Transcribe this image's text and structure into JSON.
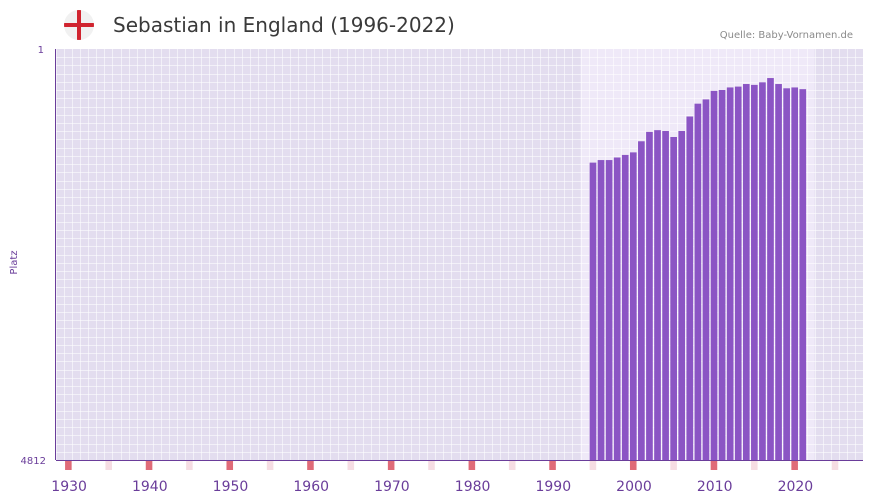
{
  "header": {
    "title": "Sebastian in England (1996-2022)",
    "source": "Quelle: Baby-Vornamen.de",
    "flag_icon": "england-flag-icon"
  },
  "chart_data": {
    "type": "bar",
    "title": "Sebastian in England (1996-2022)",
    "ylabel": "Platz",
    "xlabel": "",
    "y_inverted": true,
    "ylim": [
      1,
      4812
    ],
    "y_ticks": [
      "1",
      "4812"
    ],
    "xlim": [
      1929,
      2029
    ],
    "x_ticks": [
      "1930",
      "1940",
      "1950",
      "1960",
      "1970",
      "1980",
      "1990",
      "2000",
      "2010",
      "2020"
    ],
    "bar_color": "#8b55c4",
    "grid": true,
    "x": [
      1996,
      1997,
      1998,
      1999,
      2000,
      2001,
      2002,
      2003,
      2004,
      2005,
      2006,
      2007,
      2008,
      2009,
      2010,
      2011,
      2012,
      2013,
      2014,
      2015,
      2016,
      2017,
      2018,
      2019,
      2020,
      2021,
      2022
    ],
    "values": [
      1331,
      1301,
      1301,
      1271,
      1241,
      1211,
      1081,
      971,
      951,
      961,
      1031,
      961,
      791,
      641,
      591,
      491,
      481,
      451,
      441,
      411,
      421,
      391,
      341,
      411,
      461,
      451,
      471
    ]
  }
}
